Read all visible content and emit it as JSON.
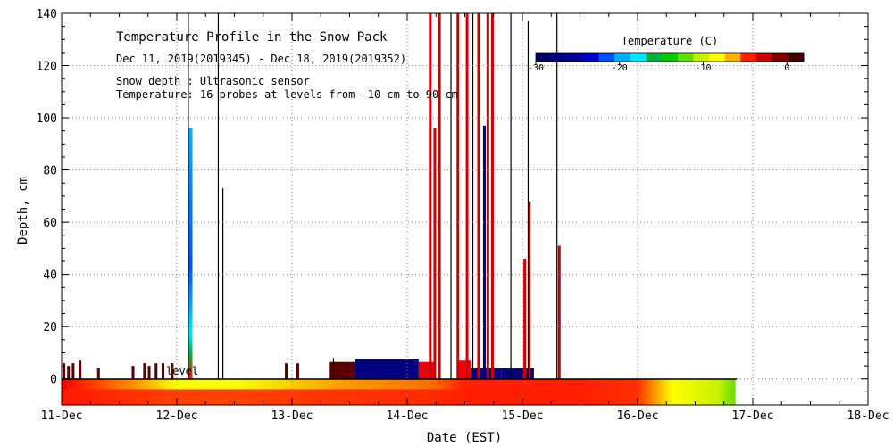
{
  "chart_data": {
    "type": "heatmap",
    "title": "Temperature Profile in the Snow Pack",
    "date_range": "Dec 11, 2019(2019345) - Dec 18, 2019(2019352)",
    "notes": [
      "Snow depth : Ultrasonic sensor",
      "Temperature: 16 probes at levels from -10 cm to 90 cm"
    ],
    "ground_label": "level",
    "xlabel": "Date (EST)",
    "ylabel": "Depth, cm",
    "x_ticks": [
      "11-Dec",
      "12-Dec",
      "13-Dec",
      "14-Dec",
      "15-Dec",
      "16-Dec",
      "17-Dec",
      "18-Dec"
    ],
    "xlim": [
      0,
      7
    ],
    "ylim": [
      -10,
      140
    ],
    "y_ticks": [
      0,
      20,
      40,
      60,
      80,
      100,
      120,
      140
    ],
    "grid": true,
    "colorbar": {
      "title": "Temperature (C)",
      "range": [
        -30,
        2
      ],
      "ticks": [
        -30,
        -20,
        -10,
        0
      ],
      "colors": [
        "#000066",
        "#000080",
        "#00009a",
        "#0000cc",
        "#0050ff",
        "#00b0ff",
        "#00e8ff",
        "#00b040",
        "#00cc00",
        "#60e000",
        "#c8f000",
        "#ffff00",
        "#ffb000",
        "#ff2000",
        "#cc0000",
        "#7a0000",
        "#400000"
      ]
    },
    "ground_layer": [
      {
        "x": 0.0,
        "c": "#ee0000"
      },
      {
        "x": 0.15,
        "c": "#ff2000"
      },
      {
        "x": 0.75,
        "c": "#ffb000"
      },
      {
        "x": 1.0,
        "c": "#ffff00"
      },
      {
        "x": 1.5,
        "c": "#ffff00"
      },
      {
        "x": 2.0,
        "c": "#ffcc00"
      },
      {
        "x": 2.4,
        "c": "#ffa000"
      },
      {
        "x": 3.2,
        "c": "#ff7000"
      },
      {
        "x": 3.5,
        "c": "#ff2000"
      },
      {
        "x": 4.5,
        "c": "#ff2000"
      },
      {
        "x": 5.0,
        "c": "#ff3000"
      },
      {
        "x": 5.3,
        "c": "#ffff00"
      },
      {
        "x": 5.7,
        "c": "#c8f000"
      },
      {
        "x": 5.85,
        "c": "#60e000"
      }
    ],
    "ground_end": 5.85,
    "snow_bands": [
      {
        "x0": 2.32,
        "x1": 2.55,
        "top": 6.5,
        "c": "#5a0000"
      },
      {
        "x0": 2.55,
        "x1": 3.1,
        "top": 7.5,
        "c": "#000080"
      },
      {
        "x0": 3.1,
        "x1": 3.25,
        "top": 6.5,
        "c": "#ee0000"
      },
      {
        "x0": 3.45,
        "x1": 3.55,
        "top": 7,
        "c": "#ee0000"
      },
      {
        "x0": 3.55,
        "x1": 3.82,
        "top": 4,
        "c": "#000080"
      },
      {
        "x0": 3.82,
        "x1": 4.1,
        "top": 4,
        "c": "#000080"
      }
    ],
    "spikes": [
      {
        "x": 0.02,
        "top": 6,
        "c": "#5a0000"
      },
      {
        "x": 0.06,
        "top": 5,
        "c": "#5a0000"
      },
      {
        "x": 0.1,
        "top": 6,
        "c": "#5a0000"
      },
      {
        "x": 0.16,
        "top": 7,
        "c": "#5a0000"
      },
      {
        "x": 0.32,
        "top": 4,
        "c": "#5a0000"
      },
      {
        "x": 0.62,
        "top": 5,
        "c": "#5a0000"
      },
      {
        "x": 0.72,
        "top": 6,
        "c": "#5a0000"
      },
      {
        "x": 0.76,
        "top": 5,
        "c": "#5a0000"
      },
      {
        "x": 0.82,
        "top": 6,
        "c": "#5a0000"
      },
      {
        "x": 0.88,
        "top": 6,
        "c": "#5a0000"
      },
      {
        "x": 0.96,
        "top": 6,
        "c": "#5a0000"
      },
      {
        "x": 1.1,
        "top": 140,
        "c": "#000000"
      },
      {
        "x": 1.36,
        "top": 140,
        "c": "#000000"
      },
      {
        "x": 1.4,
        "top": 73,
        "c": "#000000"
      },
      {
        "x": 1.95,
        "top": 6,
        "c": "#5a0000"
      },
      {
        "x": 2.05,
        "top": 6,
        "c": "#5a0000"
      },
      {
        "x": 2.36,
        "top": 8,
        "c": "#000000"
      },
      {
        "x": 3.2,
        "top": 140,
        "c": "#cc0000"
      },
      {
        "x": 3.24,
        "top": 96,
        "c": "#cc0000"
      },
      {
        "x": 3.28,
        "top": 140,
        "c": "#cc0000"
      },
      {
        "x": 3.38,
        "top": 140,
        "c": "#000000"
      },
      {
        "x": 3.44,
        "top": 140,
        "c": "#cc0000"
      },
      {
        "x": 3.52,
        "top": 140,
        "c": "#cc0000"
      },
      {
        "x": 3.57,
        "top": 140,
        "c": "#000000"
      },
      {
        "x": 3.62,
        "top": 140,
        "c": "#cc0000"
      },
      {
        "x": 3.67,
        "top": 97,
        "c": "#000080"
      },
      {
        "x": 3.7,
        "top": 140,
        "c": "#cc0000"
      },
      {
        "x": 3.74,
        "top": 140,
        "c": "#cc0000"
      },
      {
        "x": 3.9,
        "top": 140,
        "c": "#000000"
      },
      {
        "x": 4.02,
        "top": 46,
        "c": "#cc0000"
      },
      {
        "x": 4.06,
        "top": 68,
        "c": "#cc0000"
      },
      {
        "x": 4.05,
        "top": 137,
        "c": "#000000"
      },
      {
        "x": 4.3,
        "top": 140,
        "c": "#000000"
      },
      {
        "x": 4.32,
        "top": 51,
        "c": "#cc0000"
      }
    ],
    "colored_column": {
      "x": 1.12,
      "top": 96
    }
  }
}
